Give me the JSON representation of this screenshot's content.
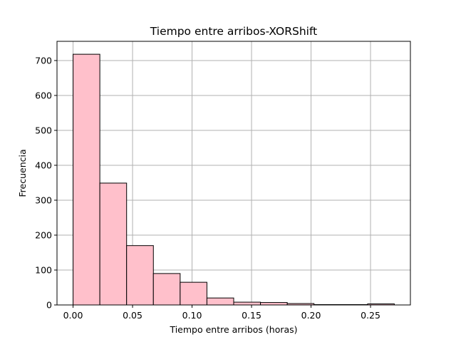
{
  "chart_data": {
    "type": "bar",
    "title": "Tiempo entre arribos-XORShift",
    "xlabel": "Tiempo entre arribos (horas)",
    "ylabel": "Frecuencia",
    "xlim": [
      -0.0135,
      0.2835
    ],
    "ylim": [
      0,
      755
    ],
    "grid": true,
    "bar_color": "#ffc0cb",
    "edge_color": "#000000",
    "grid_color": "#b0b0b0",
    "x_ticks": [
      {
        "value": 0.0,
        "label": "0.00"
      },
      {
        "value": 0.05,
        "label": "0.05"
      },
      {
        "value": 0.1,
        "label": "0.10"
      },
      {
        "value": 0.15,
        "label": "0.15"
      },
      {
        "value": 0.2,
        "label": "0.20"
      },
      {
        "value": 0.25,
        "label": "0.25"
      }
    ],
    "y_ticks": [
      {
        "value": 0,
        "label": "0"
      },
      {
        "value": 100,
        "label": "100"
      },
      {
        "value": 200,
        "label": "200"
      },
      {
        "value": 300,
        "label": "300"
      },
      {
        "value": 400,
        "label": "400"
      },
      {
        "value": 500,
        "label": "500"
      },
      {
        "value": 600,
        "label": "600"
      },
      {
        "value": 700,
        "label": "700"
      }
    ],
    "bin_edges": [
      0.0,
      0.0225,
      0.045,
      0.0675,
      0.09,
      0.1125,
      0.135,
      0.1575,
      0.18,
      0.2025,
      0.225,
      0.2475,
      0.27
    ],
    "values": [
      718,
      349,
      170,
      90,
      65,
      20,
      8,
      7,
      4,
      1,
      1,
      3
    ]
  }
}
